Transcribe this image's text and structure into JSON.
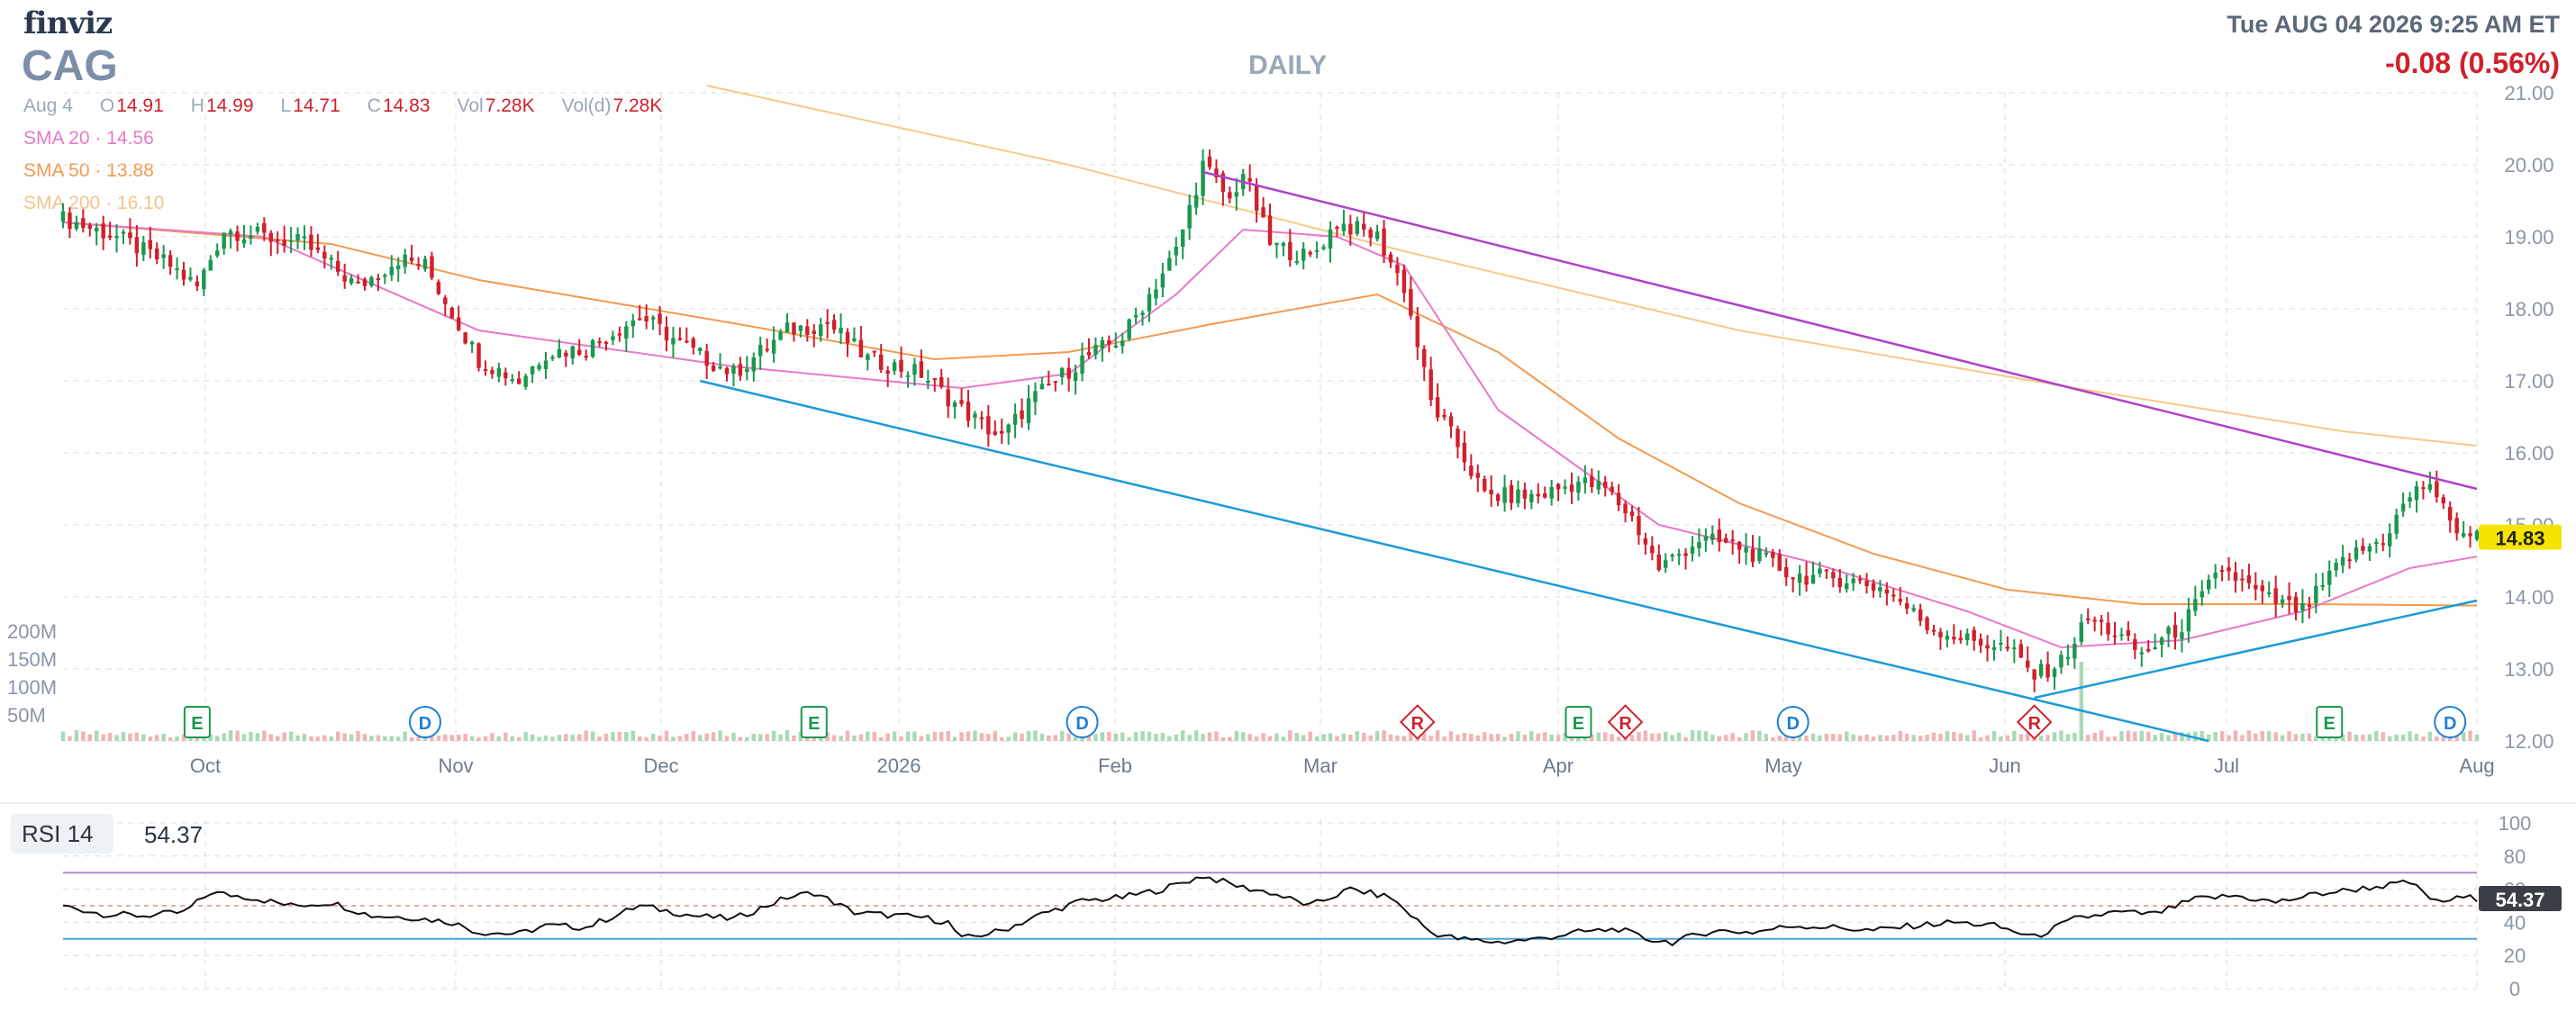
{
  "brand": "finviz",
  "ticker": "CAG",
  "timeframe": "DAILY",
  "datetime": "Tue AUG 04 2026 9:25 AM ET",
  "change": "-0.08 (0.56%)",
  "ohlc": {
    "date": "Aug 4",
    "open_label": "O",
    "open": "14.91",
    "high_label": "H",
    "high": "14.99",
    "low_label": "L",
    "low": "14.71",
    "close_label": "C",
    "close": "14.83",
    "vol_label": "Vol",
    "vol": "7.28K",
    "vold_label": "Vol(d)",
    "vold": "7.28K"
  },
  "sma": [
    {
      "label": "SMA 20",
      "value": "14.56",
      "color": "#e879c8"
    },
    {
      "label": "SMA 50",
      "value": "13.88",
      "color": "#f39a4f"
    },
    {
      "label": "SMA 200",
      "value": "16.10",
      "color": "#f6c98a"
    }
  ],
  "colors": {
    "up": "#1a9850",
    "down": "#d0202c",
    "grid": "#dcdcdc",
    "trend_upper": "#b040c8",
    "trend_lower": "#1a9bd7",
    "rsi_line": "#111111",
    "rsi_upper": "#b388d6",
    "rsi_lower": "#4aa3df",
    "price_tag": "#f5e400"
  },
  "chart_data": [
    {
      "type": "candlestick",
      "ylim": [
        12,
        21
      ],
      "y_ticks": [
        "21.00",
        "20.00",
        "19.00",
        "18.00",
        "17.00",
        "16.00",
        "15.00",
        "14.00",
        "13.00",
        "12.00"
      ],
      "x_ticks": [
        "Oct",
        "Nov",
        "Dec",
        "2026",
        "Feb",
        "Mar",
        "Apr",
        "May",
        "Jun",
        "Jul",
        "Aug"
      ],
      "volume_ticks": [
        "200M",
        "150M",
        "100M",
        "50M"
      ],
      "last_price": "14.83",
      "close_points": [
        [
          0,
          19.25
        ],
        [
          8,
          19.0
        ],
        [
          16,
          18.6
        ],
        [
          20,
          18.3
        ],
        [
          24,
          19.1
        ],
        [
          30,
          19.0
        ],
        [
          36,
          18.9
        ],
        [
          44,
          18.3
        ],
        [
          50,
          18.7
        ],
        [
          54,
          18.6
        ],
        [
          62,
          17.3
        ],
        [
          68,
          17.0
        ],
        [
          72,
          17.4
        ],
        [
          78,
          17.45
        ],
        [
          86,
          17.9
        ],
        [
          94,
          17.4
        ],
        [
          100,
          17.1
        ],
        [
          108,
          17.7
        ],
        [
          114,
          17.8
        ],
        [
          120,
          17.3
        ],
        [
          128,
          17.1
        ],
        [
          134,
          16.6
        ],
        [
          140,
          16.2
        ],
        [
          144,
          16.7
        ],
        [
          152,
          17.3
        ],
        [
          158,
          17.6
        ],
        [
          166,
          18.8
        ],
        [
          170,
          20.0
        ],
        [
          174,
          19.5
        ],
        [
          176,
          19.9
        ],
        [
          180,
          18.9
        ],
        [
          186,
          18.7
        ],
        [
          190,
          19.2
        ],
        [
          196,
          19.0
        ],
        [
          200,
          18.3
        ],
        [
          204,
          16.7
        ],
        [
          208,
          16.1
        ],
        [
          212,
          15.4
        ],
        [
          220,
          15.4
        ],
        [
          226,
          15.6
        ],
        [
          230,
          15.5
        ],
        [
          234,
          15.1
        ],
        [
          238,
          14.4
        ],
        [
          244,
          14.8
        ],
        [
          250,
          14.7
        ],
        [
          258,
          14.3
        ],
        [
          266,
          14.25
        ],
        [
          272,
          14.1
        ],
        [
          278,
          13.6
        ],
        [
          284,
          13.4
        ],
        [
          290,
          13.3
        ],
        [
          294,
          12.9
        ],
        [
          298,
          13.1
        ],
        [
          302,
          13.7
        ],
        [
          306,
          13.5
        ],
        [
          310,
          13.2
        ],
        [
          316,
          13.6
        ],
        [
          322,
          14.4
        ],
        [
          328,
          14.0
        ],
        [
          334,
          13.8
        ],
        [
          340,
          14.5
        ],
        [
          346,
          14.8
        ],
        [
          350,
          15.4
        ],
        [
          353,
          15.6
        ],
        [
          356,
          15.0
        ],
        [
          360,
          14.83
        ]
      ],
      "sma20_points": [
        [
          0,
          19.2
        ],
        [
          30,
          19.0
        ],
        [
          62,
          17.7
        ],
        [
          100,
          17.2
        ],
        [
          134,
          16.9
        ],
        [
          150,
          17.1
        ],
        [
          166,
          18.2
        ],
        [
          176,
          19.1
        ],
        [
          190,
          19.0
        ],
        [
          200,
          18.6
        ],
        [
          214,
          16.6
        ],
        [
          226,
          15.8
        ],
        [
          238,
          15.0
        ],
        [
          260,
          14.5
        ],
        [
          284,
          13.8
        ],
        [
          298,
          13.3
        ],
        [
          316,
          13.4
        ],
        [
          334,
          13.8
        ],
        [
          350,
          14.4
        ],
        [
          360,
          14.56
        ]
      ],
      "sma50_points": [
        [
          0,
          19.2
        ],
        [
          40,
          18.9
        ],
        [
          62,
          18.4
        ],
        [
          100,
          17.8
        ],
        [
          130,
          17.3
        ],
        [
          150,
          17.4
        ],
        [
          172,
          17.8
        ],
        [
          196,
          18.2
        ],
        [
          214,
          17.4
        ],
        [
          232,
          16.2
        ],
        [
          250,
          15.3
        ],
        [
          270,
          14.6
        ],
        [
          290,
          14.1
        ],
        [
          310,
          13.9
        ],
        [
          334,
          13.9
        ],
        [
          360,
          13.88
        ]
      ],
      "sma200_points": [
        [
          96,
          21.1
        ],
        [
          150,
          20.0
        ],
        [
          200,
          18.8
        ],
        [
          250,
          17.7
        ],
        [
          300,
          16.9
        ],
        [
          340,
          16.3
        ],
        [
          360,
          16.1
        ]
      ],
      "trend_upper": [
        [
          170,
          19.9
        ],
        [
          360,
          15.5
        ]
      ],
      "trend_lower_1": [
        [
          95,
          17.0
        ],
        [
          320,
          12.0
        ]
      ],
      "trend_lower_2": [
        [
          294,
          12.6
        ],
        [
          360,
          13.95
        ]
      ],
      "events": [
        {
          "x": 20,
          "label": "E",
          "kind": "earnings"
        },
        {
          "x": 54,
          "label": "D",
          "kind": "dividend"
        },
        {
          "x": 112,
          "label": "E",
          "kind": "earnings"
        },
        {
          "x": 152,
          "label": "D",
          "kind": "dividend"
        },
        {
          "x": 202,
          "label": "R",
          "kind": "rating"
        },
        {
          "x": 226,
          "label": "E",
          "kind": "earnings"
        },
        {
          "x": 233,
          "label": "R",
          "kind": "rating"
        },
        {
          "x": 258,
          "label": "D",
          "kind": "dividend"
        },
        {
          "x": 294,
          "label": "R",
          "kind": "rating"
        },
        {
          "x": 338,
          "label": "E",
          "kind": "earnings"
        },
        {
          "x": 356,
          "label": "D",
          "kind": "dividend"
        }
      ]
    },
    {
      "type": "line",
      "title": "RSI 14",
      "value": "54.37",
      "ylim": [
        0,
        100
      ],
      "y_ticks": [
        "100",
        "80",
        "60",
        "40",
        "20",
        "0"
      ],
      "overbought": 70,
      "oversold": 30,
      "points": [
        [
          0,
          50
        ],
        [
          6,
          45
        ],
        [
          12,
          44
        ],
        [
          18,
          46
        ],
        [
          22,
          58
        ],
        [
          28,
          55
        ],
        [
          34,
          50
        ],
        [
          40,
          52
        ],
        [
          46,
          44
        ],
        [
          52,
          43
        ],
        [
          58,
          40
        ],
        [
          62,
          34
        ],
        [
          68,
          33
        ],
        [
          72,
          38
        ],
        [
          78,
          37
        ],
        [
          86,
          50
        ],
        [
          94,
          44
        ],
        [
          100,
          42
        ],
        [
          108,
          55
        ],
        [
          112,
          58
        ],
        [
          118,
          46
        ],
        [
          124,
          44
        ],
        [
          128,
          43
        ],
        [
          132,
          40
        ],
        [
          134,
          30
        ],
        [
          140,
          35
        ],
        [
          146,
          45
        ],
        [
          152,
          53
        ],
        [
          158,
          55
        ],
        [
          164,
          60
        ],
        [
          170,
          68
        ],
        [
          176,
          61
        ],
        [
          180,
          58
        ],
        [
          186,
          50
        ],
        [
          192,
          60
        ],
        [
          198,
          55
        ],
        [
          204,
          34
        ],
        [
          208,
          30
        ],
        [
          214,
          28
        ],
        [
          220,
          30
        ],
        [
          226,
          34
        ],
        [
          232,
          36
        ],
        [
          236,
          30
        ],
        [
          240,
          28
        ],
        [
          246,
          35
        ],
        [
          252,
          34
        ],
        [
          258,
          38
        ],
        [
          264,
          37
        ],
        [
          270,
          35
        ],
        [
          276,
          38
        ],
        [
          282,
          40
        ],
        [
          288,
          38
        ],
        [
          294,
          31
        ],
        [
          300,
          42
        ],
        [
          306,
          46
        ],
        [
          312,
          45
        ],
        [
          318,
          54
        ],
        [
          324,
          56
        ],
        [
          330,
          52
        ],
        [
          336,
          57
        ],
        [
          342,
          60
        ],
        [
          350,
          64
        ],
        [
          354,
          52
        ],
        [
          358,
          55
        ],
        [
          360,
          54.37
        ]
      ]
    }
  ]
}
